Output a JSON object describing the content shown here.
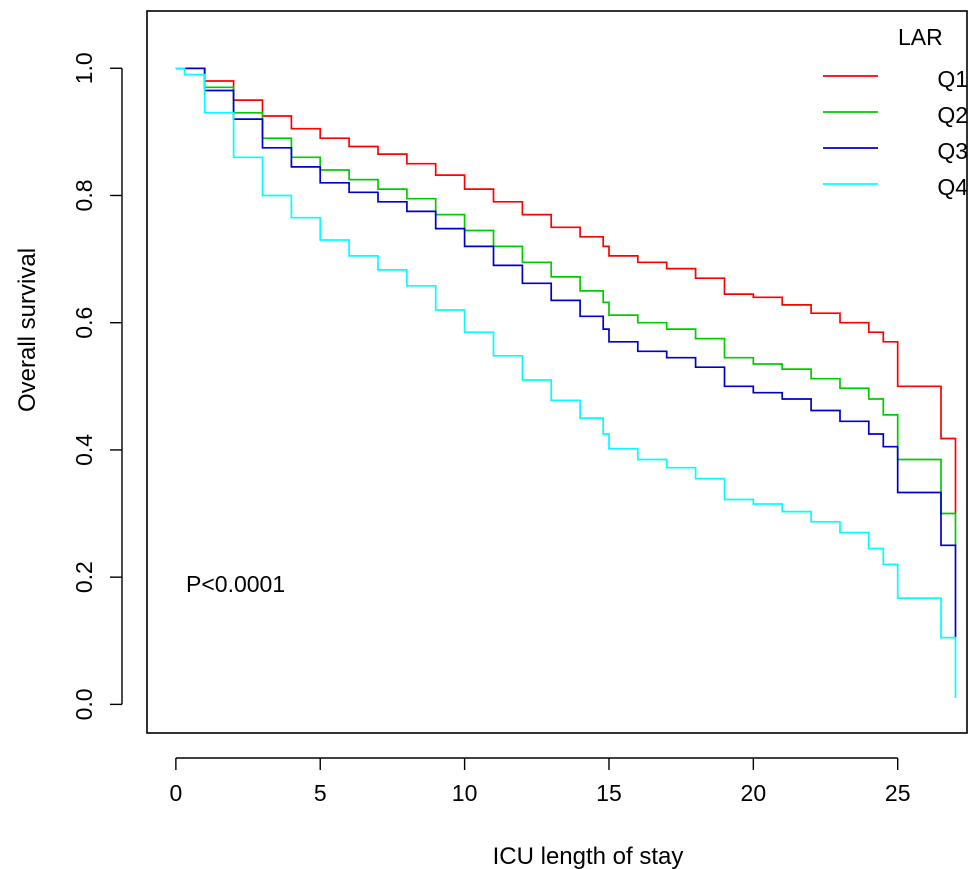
{
  "chart_data": {
    "type": "line",
    "subtype": "kaplan-meier step",
    "title": "",
    "xlabel": "ICU length of stay",
    "ylabel": "Overall survival",
    "xlim": [
      -1,
      27.4
    ],
    "ylim": [
      -0.045,
      1.09
    ],
    "x_ticks": [
      0,
      5,
      10,
      15,
      20,
      25
    ],
    "x_tick_labels": [
      "0",
      "5",
      "10",
      "15",
      "20",
      "25"
    ],
    "y_ticks": [
      0.0,
      0.2,
      0.4,
      0.6,
      0.8,
      1.0
    ],
    "y_tick_labels": [
      "0.0",
      "0.2",
      "0.4",
      "0.6",
      "0.8",
      "1.0"
    ],
    "grid": false,
    "annotation": "P<0.0001",
    "legend": {
      "title": "LAR",
      "position": "top-right"
    },
    "series": [
      {
        "name": "Q1",
        "color": "#ff0000",
        "x": [
          0,
          0.3,
          1,
          2,
          3,
          4,
          5,
          6,
          7,
          8,
          9,
          10,
          11,
          12,
          13,
          14,
          14.8,
          15,
          16,
          17,
          18,
          19,
          20,
          21,
          22,
          23,
          24,
          24.5,
          25,
          26.5,
          27
        ],
        "y": [
          1.0,
          1.0,
          0.98,
          0.95,
          0.925,
          0.905,
          0.89,
          0.877,
          0.865,
          0.85,
          0.832,
          0.81,
          0.79,
          0.77,
          0.75,
          0.735,
          0.72,
          0.705,
          0.695,
          0.685,
          0.67,
          0.645,
          0.64,
          0.628,
          0.615,
          0.6,
          0.585,
          0.57,
          0.5,
          0.418,
          0.3
        ]
      },
      {
        "name": "Q2",
        "color": "#00cd00",
        "x": [
          0,
          0.3,
          1,
          2,
          3,
          4,
          5,
          6,
          7,
          8,
          9,
          10,
          11,
          12,
          13,
          14,
          14.8,
          15,
          16,
          17,
          18,
          19,
          20,
          21,
          22,
          23,
          24,
          24.5,
          25,
          26.5,
          27
        ],
        "y": [
          1.0,
          1.0,
          0.97,
          0.93,
          0.89,
          0.86,
          0.84,
          0.825,
          0.81,
          0.795,
          0.77,
          0.745,
          0.72,
          0.695,
          0.672,
          0.65,
          0.632,
          0.612,
          0.6,
          0.59,
          0.575,
          0.545,
          0.535,
          0.527,
          0.512,
          0.497,
          0.48,
          0.455,
          0.385,
          0.3,
          0.25
        ]
      },
      {
        "name": "Q3",
        "color": "#0000cd",
        "x": [
          0,
          0.3,
          1,
          2,
          3,
          4,
          5,
          6,
          7,
          8,
          9,
          10,
          11,
          12,
          13,
          14,
          14.8,
          15,
          16,
          17,
          18,
          19,
          20,
          21,
          22,
          23,
          24,
          24.5,
          25,
          26.5,
          27
        ],
        "y": [
          1.0,
          1.0,
          0.965,
          0.92,
          0.875,
          0.845,
          0.82,
          0.805,
          0.79,
          0.775,
          0.748,
          0.72,
          0.69,
          0.662,
          0.635,
          0.61,
          0.59,
          0.57,
          0.555,
          0.545,
          0.53,
          0.5,
          0.49,
          0.48,
          0.462,
          0.445,
          0.425,
          0.405,
          0.333,
          0.25,
          0.105
        ]
      },
      {
        "name": "Q4",
        "color": "#00ffff",
        "x": [
          0,
          0.3,
          1,
          2,
          3,
          4,
          5,
          6,
          7,
          8,
          9,
          10,
          11,
          12,
          13,
          14,
          14.8,
          15,
          16,
          17,
          18,
          19,
          20,
          21,
          22,
          23,
          24,
          24.5,
          25,
          26.5,
          27
        ],
        "y": [
          1.0,
          0.99,
          0.93,
          0.86,
          0.8,
          0.765,
          0.73,
          0.705,
          0.683,
          0.658,
          0.62,
          0.585,
          0.548,
          0.51,
          0.478,
          0.45,
          0.425,
          0.402,
          0.385,
          0.372,
          0.355,
          0.322,
          0.315,
          0.303,
          0.287,
          0.27,
          0.245,
          0.22,
          0.167,
          0.105,
          0.01
        ]
      }
    ]
  }
}
